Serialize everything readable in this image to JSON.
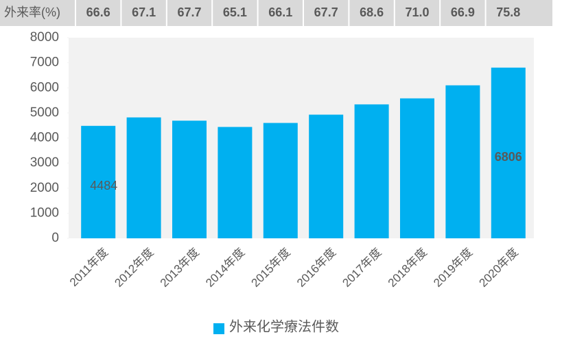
{
  "chart_data": {
    "type": "bar",
    "rate_row": {
      "label": "外来率(%)",
      "values": [
        66.6,
        67.1,
        67.7,
        65.1,
        66.1,
        67.7,
        68.6,
        71.0,
        66.9,
        75.8
      ],
      "value_labels": [
        "66.6",
        "67.1",
        "67.7",
        "65.1",
        "66.1",
        "67.7",
        "68.6",
        "71.0",
        "66.9",
        "75.8"
      ],
      "highlight_color": "#c00000"
    },
    "categories": [
      "2011年度",
      "2012年度",
      "2013年度",
      "2014年度",
      "2015年度",
      "2016年度",
      "2017年度",
      "2018年度",
      "2019年度",
      "2020年度"
    ],
    "series": [
      {
        "name": "外来化学療法件数",
        "color": "#00b0f0",
        "values": [
          4484,
          4820,
          4690,
          4440,
          4600,
          4930,
          5340,
          5580,
          6100,
          6806
        ]
      }
    ],
    "ylim": [
      0,
      8000
    ],
    "yticks": [
      0,
      1000,
      2000,
      3000,
      4000,
      5000,
      6000,
      7000,
      8000
    ],
    "legend": "bottom"
  }
}
